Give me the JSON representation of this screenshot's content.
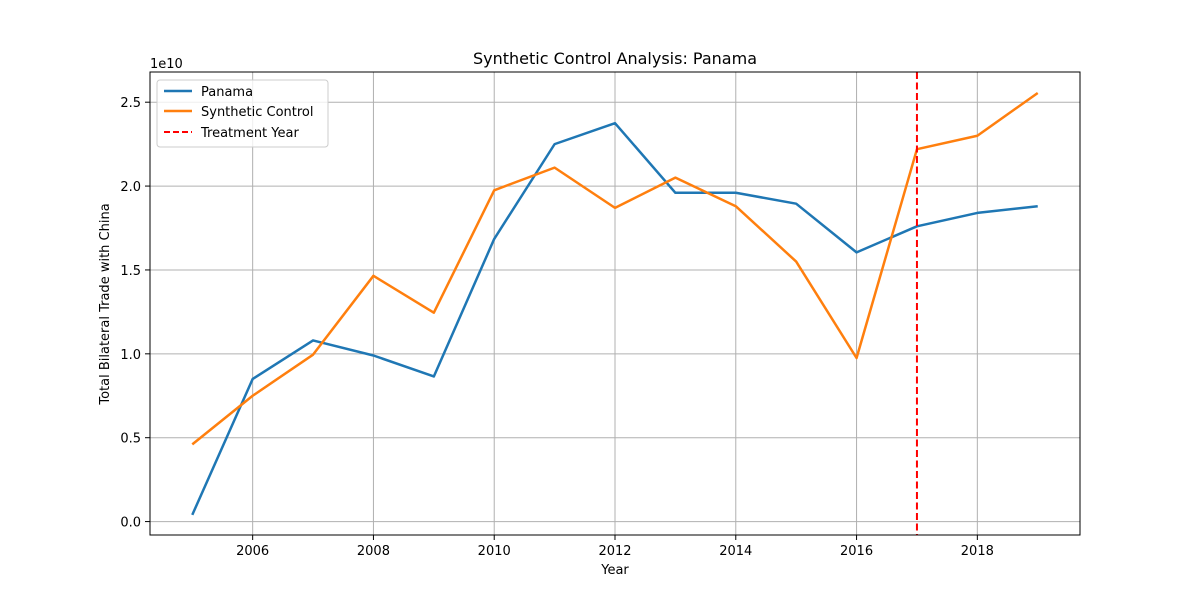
{
  "chart_data": {
    "type": "line",
    "title": "Synthetic Control Analysis: Panama",
    "xlabel": "Year",
    "ylabel": "Total Bilateral Trade with China",
    "y_offset_label": "1e10",
    "xlim": [
      2004.3,
      2019.7
    ],
    "ylim": [
      -0.08,
      2.68
    ],
    "x_ticks": [
      2006,
      2008,
      2010,
      2012,
      2014,
      2016,
      2018
    ],
    "y_ticks": [
      0.0,
      0.5,
      1.0,
      1.5,
      2.0,
      2.5
    ],
    "x_tick_labels": [
      "2006",
      "2008",
      "2010",
      "2012",
      "2014",
      "2016",
      "2018"
    ],
    "y_tick_labels": [
      "0.0",
      "0.5",
      "1.0",
      "1.5",
      "2.0",
      "2.5"
    ],
    "grid": true,
    "legend_position": "upper-left",
    "x": [
      2005,
      2006,
      2007,
      2008,
      2009,
      2010,
      2011,
      2012,
      2013,
      2014,
      2015,
      2016,
      2017,
      2018,
      2019
    ],
    "series": [
      {
        "name": "Panama",
        "color": "#1f77b4",
        "values": [
          0.04,
          0.85,
          1.08,
          0.99,
          0.865,
          1.685,
          2.25,
          2.375,
          1.96,
          1.96,
          1.895,
          1.605,
          1.76,
          1.84,
          1.88
        ]
      },
      {
        "name": "Synthetic Control",
        "color": "#ff7f0e",
        "values": [
          0.46,
          0.75,
          0.995,
          1.465,
          1.245,
          1.975,
          2.11,
          1.87,
          2.05,
          1.88,
          1.55,
          0.975,
          2.22,
          2.3,
          2.555
        ]
      }
    ],
    "treatment": {
      "name": "Treatment Year",
      "x": 2017,
      "color": "#ff0000",
      "style": "dashed"
    }
  }
}
